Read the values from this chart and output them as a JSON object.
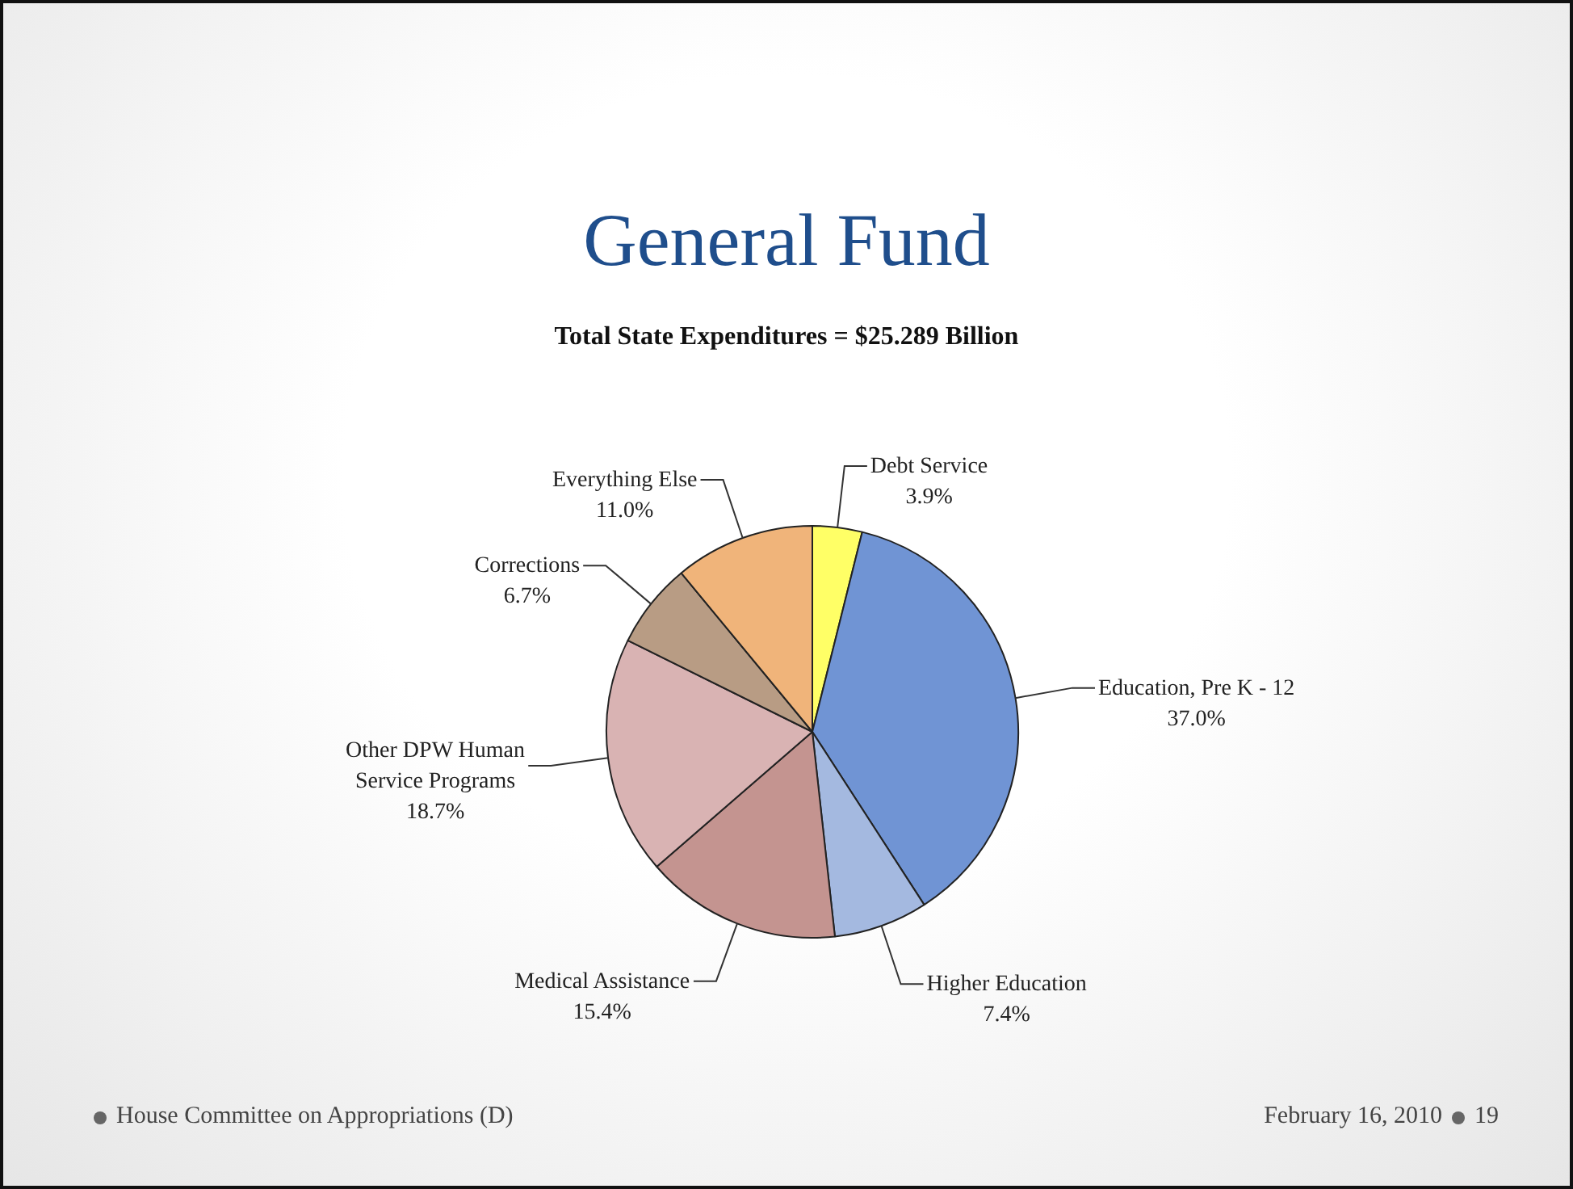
{
  "chart_data": {
    "type": "pie",
    "title": "General Fund",
    "subtitle": "Total State Expenditures = $25.289 Billion",
    "categories": [
      "Debt Service",
      "Education, Pre K - 12",
      "Higher Education",
      "Medical Assistance",
      "Other DPW Human Service Programs",
      "Corrections",
      "Everything Else"
    ],
    "values": [
      3.9,
      37.0,
      7.4,
      15.4,
      18.7,
      6.7,
      11.0
    ],
    "value_labels": [
      "3.9%",
      "37.0%",
      "7.4%",
      "15.4%",
      "18.7%",
      "6.7%",
      "11.0%"
    ],
    "colors": [
      "#ffff66",
      "#7094d4",
      "#a4b9e0",
      "#c49490",
      "#d9b3b3",
      "#b89c84",
      "#f0b47a"
    ],
    "legend": false,
    "annotations": [
      "House Committee on Appropriations (D)",
      "February 16, 2010",
      "19"
    ]
  }
}
